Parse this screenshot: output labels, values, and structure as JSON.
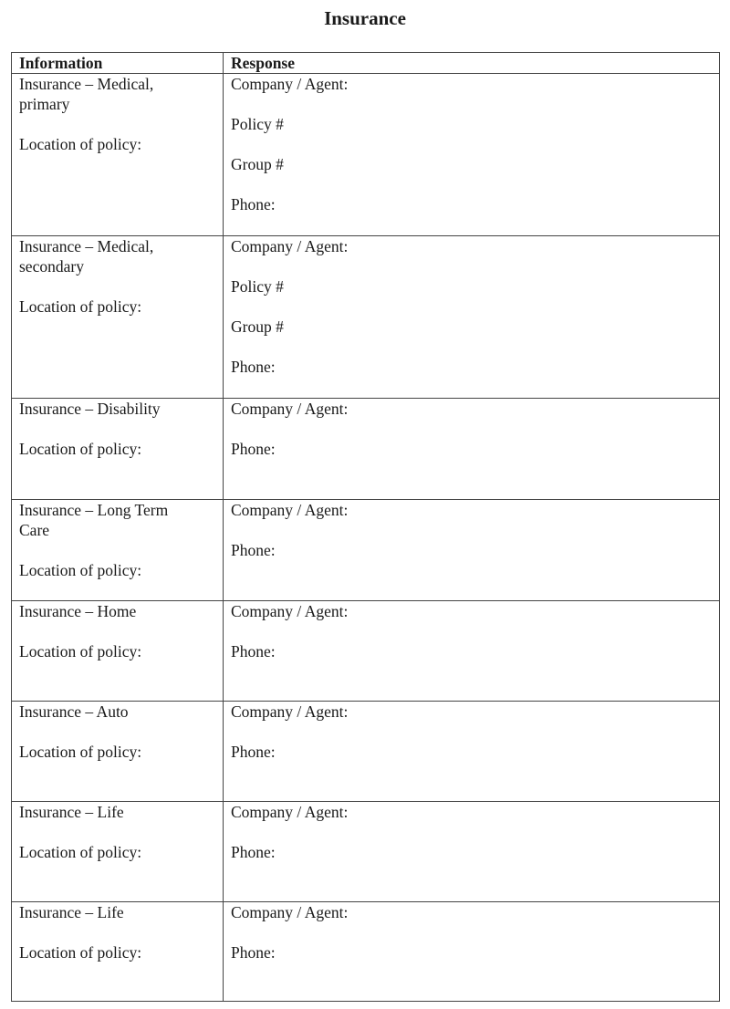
{
  "title": "Insurance",
  "table": {
    "headers": [
      "Information",
      "Response"
    ],
    "rows": [
      {
        "info": [
          "Insurance – Medical,",
          "primary",
          "",
          "Location of policy:"
        ],
        "response": [
          "Company / Agent:",
          "",
          "Policy #",
          "",
          "Group #",
          "",
          "Phone:"
        ]
      },
      {
        "info": [
          "Insurance – Medical,",
          "secondary",
          "",
          "Location of policy:"
        ],
        "response": [
          "Company / Agent:",
          "",
          "Policy #",
          "",
          "Group #",
          "",
          "Phone:"
        ]
      },
      {
        "info": [
          "Insurance – Disability",
          "",
          "Location of policy:"
        ],
        "response": [
          "Company / Agent:",
          "",
          "Phone:"
        ]
      },
      {
        "info": [
          "Insurance – Long Term",
          "Care",
          "",
          "Location of policy:"
        ],
        "response": [
          "Company / Agent:",
          "",
          "Phone:"
        ]
      },
      {
        "info": [
          "Insurance – Home",
          "",
          "Location of policy:"
        ],
        "response": [
          "Company / Agent:",
          "",
          "Phone:"
        ]
      },
      {
        "info": [
          "Insurance – Auto",
          "",
          "Location of policy:"
        ],
        "response": [
          "Company / Agent:",
          "",
          "Phone:"
        ]
      },
      {
        "info": [
          "Insurance – Life",
          "",
          "Location of policy:"
        ],
        "response": [
          "Company / Agent:",
          "",
          "Phone:"
        ]
      },
      {
        "info": [
          "Insurance – Life",
          "",
          "Location of policy:"
        ],
        "response": [
          "Company / Agent:",
          "",
          "Phone:"
        ]
      }
    ]
  }
}
